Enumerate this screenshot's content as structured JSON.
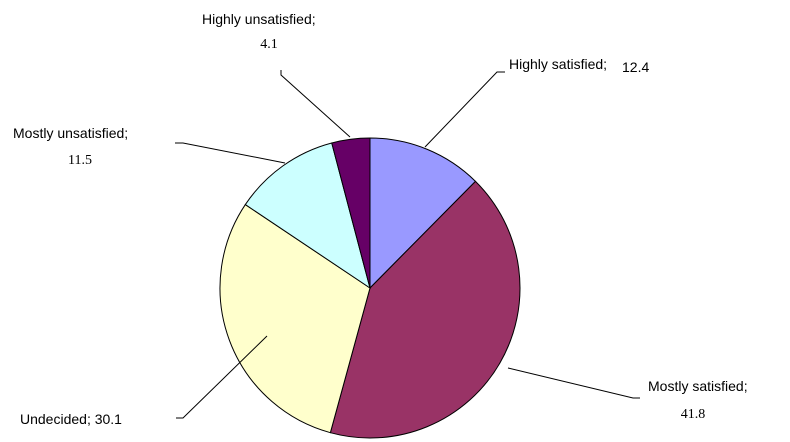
{
  "chart_data": {
    "type": "pie",
    "categories": [
      "Highly satisfied",
      "Mostly satisfied",
      "Undecided",
      "Mostly unsatisfied",
      "Highly unsatisfied"
    ],
    "values": [
      12.4,
      41.8,
      30.1,
      11.5,
      4.1
    ],
    "colors": [
      "#9999ff",
      "#993366",
      "#ffffcc",
      "#ccffff",
      "#660066"
    ],
    "labels": [
      {
        "name": "Highly satisfied;",
        "value": "12.4"
      },
      {
        "name": "Mostly satisfied;",
        "value": "41.8"
      },
      {
        "name": "Undecided; 30.1",
        "value": ""
      },
      {
        "name": "Mostly unsatisfied;",
        "value": "11.5"
      },
      {
        "name": "Highly unsatisfied;",
        "value": "4.1"
      }
    ],
    "start": "top",
    "direction": "clockwise",
    "legend": "none"
  }
}
